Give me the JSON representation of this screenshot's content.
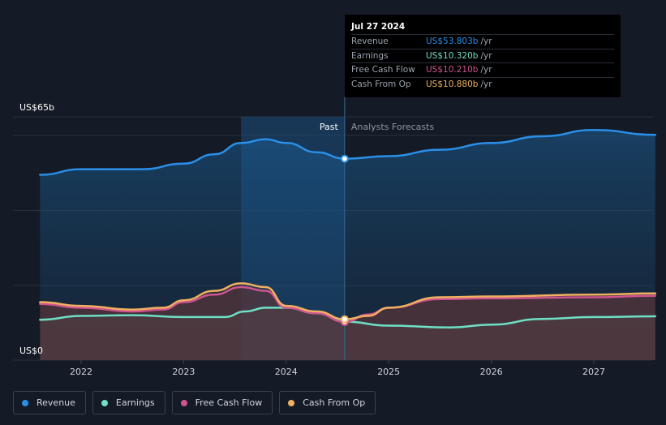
{
  "chart_data": {
    "type": "area",
    "title": "",
    "xlabel": "",
    "ylabel": "",
    "y_unit": "US$b",
    "ylim": [
      0,
      65
    ],
    "y_axis_labels": {
      "top": "US$65b",
      "bottom": "US$0"
    },
    "x_ticks": [
      2022,
      2023,
      2024,
      2025,
      2026,
      2027
    ],
    "xlim": [
      2021.6,
      2027.6
    ],
    "past_label": "Past",
    "forecast_label": "Analysts Forecasts",
    "divider_x": 2024.57,
    "highlight_start_x": 2023.56,
    "series": [
      {
        "name": "Revenue",
        "color": "#2a8fe8",
        "x": [
          2021.6,
          2022.0,
          2022.6,
          2023.0,
          2023.3,
          2023.56,
          2023.8,
          2024.0,
          2024.3,
          2024.57,
          2025.0,
          2025.5,
          2026.0,
          2026.5,
          2027.0,
          2027.6
        ],
        "y": [
          49.5,
          51.0,
          51.0,
          52.5,
          55.0,
          58.0,
          59.0,
          58.0,
          55.5,
          53.8,
          54.5,
          56.2,
          58.0,
          59.8,
          61.5,
          60.2
        ]
      },
      {
        "name": "Earnings",
        "color": "#6ee0c5",
        "x": [
          2021.6,
          2022.0,
          2022.5,
          2023.0,
          2023.4,
          2023.6,
          2023.8,
          2024.0,
          2024.3,
          2024.57,
          2025.0,
          2025.6,
          2026.0,
          2026.5,
          2027.0,
          2027.6
        ],
        "y": [
          10.8,
          11.8,
          12.0,
          11.5,
          11.5,
          13.0,
          14.0,
          14.0,
          12.5,
          10.3,
          9.2,
          8.7,
          9.5,
          11.0,
          11.5,
          11.7
        ]
      },
      {
        "name": "Free Cash Flow",
        "color": "#d0548f",
        "x": [
          2021.6,
          2022.0,
          2022.5,
          2022.8,
          2023.0,
          2023.3,
          2023.56,
          2023.8,
          2024.0,
          2024.3,
          2024.57,
          2024.8,
          2025.0,
          2025.5,
          2026.0,
          2027.0,
          2027.6
        ],
        "y": [
          15.0,
          14.0,
          13.0,
          13.5,
          15.5,
          17.5,
          19.5,
          18.5,
          14.0,
          12.5,
          10.2,
          12.2,
          14.0,
          16.3,
          16.5,
          16.8,
          17.2
        ]
      },
      {
        "name": "Cash From Op",
        "color": "#f0b060",
        "x": [
          2021.6,
          2022.0,
          2022.5,
          2022.8,
          2023.0,
          2023.3,
          2023.56,
          2023.8,
          2024.0,
          2024.3,
          2024.57,
          2024.8,
          2025.0,
          2025.5,
          2026.0,
          2027.0,
          2027.6
        ],
        "y": [
          15.5,
          14.5,
          13.5,
          14.0,
          16.0,
          18.5,
          20.5,
          19.5,
          14.5,
          13.0,
          10.9,
          11.8,
          14.0,
          16.8,
          17.0,
          17.5,
          17.8
        ]
      }
    ]
  },
  "tooltip": {
    "date": "Jul 27 2024",
    "rows": [
      {
        "name": "Revenue",
        "value": "US$53.803b",
        "unit": "/yr",
        "color": "#2a8fe8"
      },
      {
        "name": "Earnings",
        "value": "US$10.320b",
        "unit": "/yr",
        "color": "#6ee0c5"
      },
      {
        "name": "Free Cash Flow",
        "value": "US$10.210b",
        "unit": "/yr",
        "color": "#d0548f"
      },
      {
        "name": "Cash From Op",
        "value": "US$10.880b",
        "unit": "/yr",
        "color": "#f0b060"
      }
    ]
  },
  "legend": [
    {
      "label": "Revenue",
      "color": "#2a8fe8"
    },
    {
      "label": "Earnings",
      "color": "#6ee0c5"
    },
    {
      "label": "Free Cash Flow",
      "color": "#d0548f"
    },
    {
      "label": "Cash From Op",
      "color": "#f0b060"
    }
  ]
}
